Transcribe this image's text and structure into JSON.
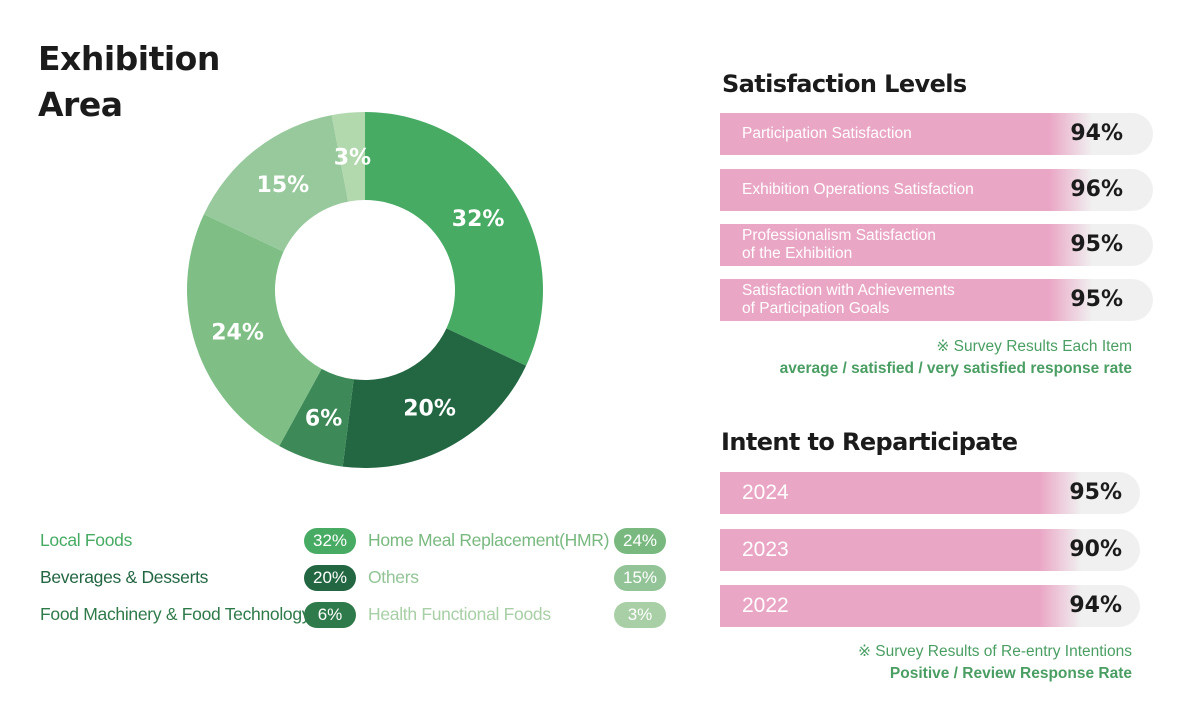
{
  "exhibition": {
    "title_line1": "Exhibition",
    "title_line2": "Area"
  },
  "chart_data": {
    "type": "pie",
    "title": "Exhibition Area",
    "donut": true,
    "slices": [
      {
        "label": "Local Foods",
        "value": 32,
        "text": "32%",
        "color": "#47ab64"
      },
      {
        "label": "Beverages & Desserts",
        "value": 20,
        "text": "20%",
        "color": "#236642"
      },
      {
        "label": "Food Machinery & Food Technology",
        "value": 6,
        "text": "6%",
        "color": "#3d8a58"
      },
      {
        "label": "Home Meal Replacement(HMR)",
        "value": 24,
        "text": "24%",
        "color": "#7fbf86"
      },
      {
        "label": "Others",
        "value": 15,
        "text": "15%",
        "color": "#97c99c"
      },
      {
        "label": "Health Functional Foods",
        "value": 3,
        "text": "3%",
        "color": "#b2d8ae"
      }
    ]
  },
  "legend": [
    {
      "label": "Local Foods",
      "value": "32%",
      "color": "#47ab64",
      "pill": "#47ab64"
    },
    {
      "label": "Beverages & Desserts",
      "value": "20%",
      "color": "#236642",
      "pill": "#236642"
    },
    {
      "label": "Food Machinery & Food Technology",
      "value": "6%",
      "color": "#2f7a4a",
      "pill": "#2f7a4a"
    },
    {
      "label": "Home Meal Replacement(HMR)",
      "value": "24%",
      "color": "#79b980",
      "pill": "#79b980"
    },
    {
      "label": "Others",
      "value": "15%",
      "color": "#93c497",
      "pill": "#93c497"
    },
    {
      "label": "Health Functional Foods",
      "value": "3%",
      "color": "#a8cfa6",
      "pill": "#a8cfa6"
    }
  ],
  "satisfaction": {
    "title": "Satisfaction Levels",
    "items": [
      {
        "line1": "Participation Satisfaction",
        "line2": "",
        "value": "94%"
      },
      {
        "line1": "Exhibition Operations Satisfaction",
        "line2": "",
        "value": "96%"
      },
      {
        "line1": "Professionalism Satisfaction",
        "line2": "of the Exhibition",
        "value": "95%"
      },
      {
        "line1": "Satisfaction with Achievements",
        "line2": "of Participation Goals",
        "value": "95%"
      }
    ],
    "note_line1": "※ Survey Results Each Item",
    "note_line2": "average / satisfied / very satisfied response rate"
  },
  "reparticipate": {
    "title": "Intent to Reparticipate",
    "items": [
      {
        "year": "2024",
        "value": "95%"
      },
      {
        "year": "2023",
        "value": "90%"
      },
      {
        "year": "2022",
        "value": "94%"
      }
    ],
    "note_line1": "※ Survey Results of Re-entry Intentions",
    "note_line2": "Positive / Review Response Rate"
  },
  "colors": {
    "bar_pink": "#eaa6c5",
    "bar_gray": "#f0f0f0",
    "note_green": "#4a9e63"
  }
}
